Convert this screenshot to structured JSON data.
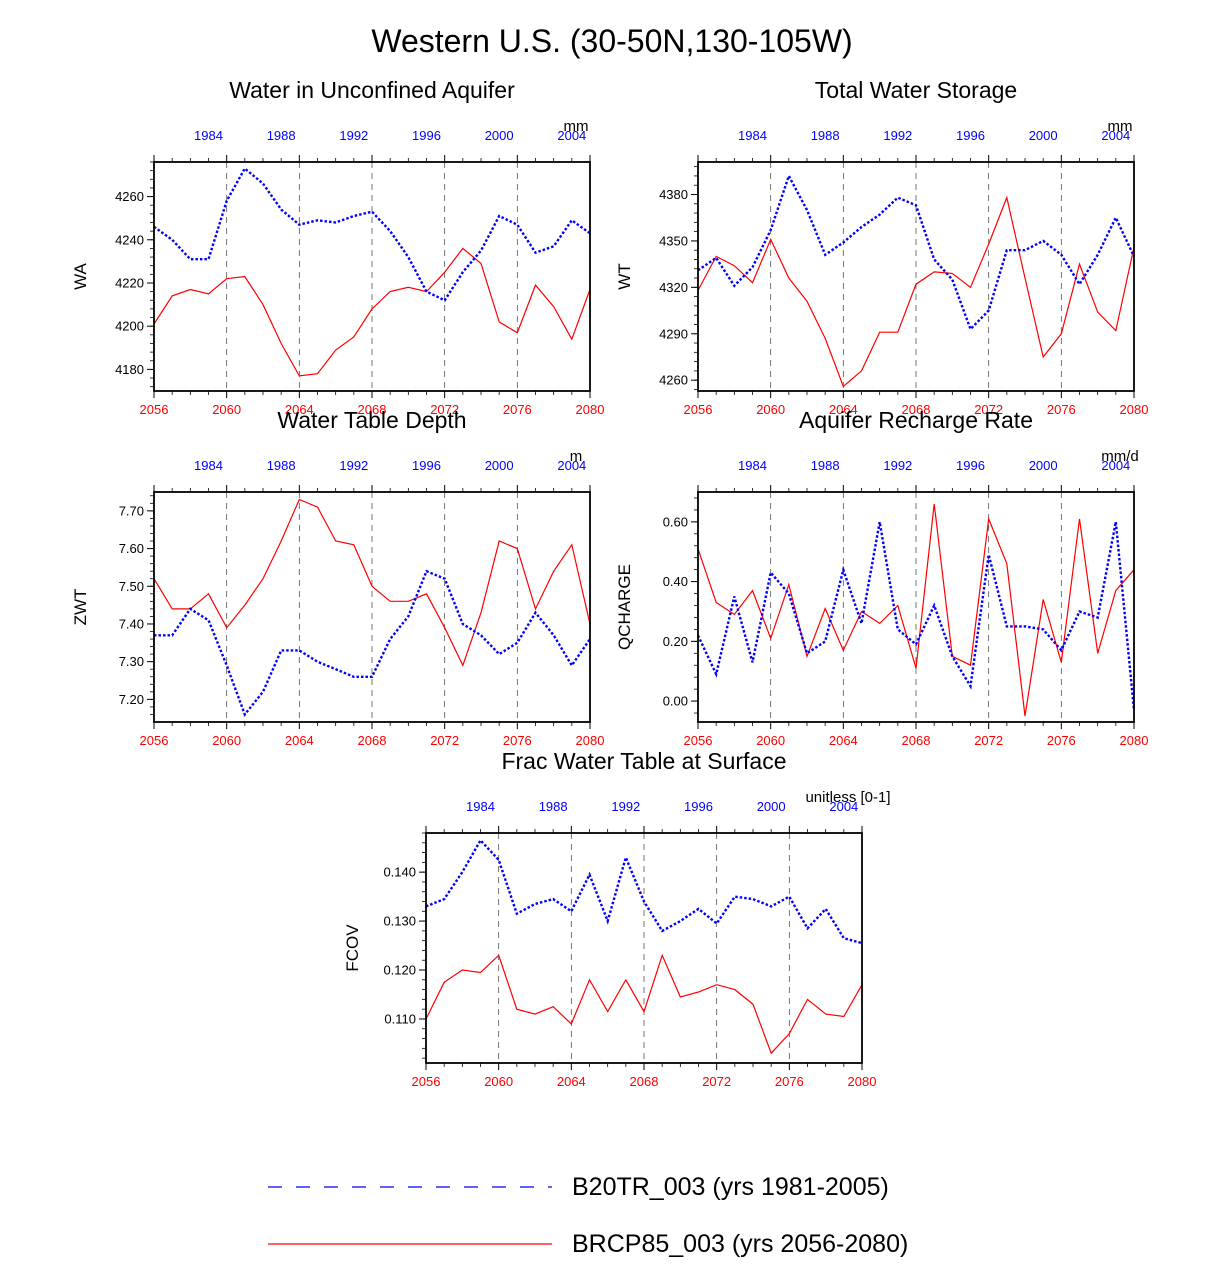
{
  "figure_title": "Western U.S. (30-50N,130-105W)",
  "colors": {
    "historical": "#0000ff",
    "future": "#ff0000",
    "axis": "#000000",
    "grid": "#555555"
  },
  "legend": [
    {
      "label": "B20TR_003 (yrs 1981-2005)",
      "color": "#0000ff",
      "style": "dashed"
    },
    {
      "label": "BRCP85_003 (yrs 2056-2080)",
      "color": "#ff0000",
      "style": "solid"
    }
  ],
  "chart_data": [
    {
      "type": "line",
      "title": "Water in Unconfined Aquifer",
      "ylabel": "WA",
      "units": "mm",
      "ylim": [
        4170,
        4276
      ],
      "yticks": [
        4180,
        4200,
        4220,
        4240,
        4260
      ],
      "ytick_labels": [
        "4180",
        "4200",
        "4220",
        "4240",
        "4260"
      ],
      "bottom_ticks": [
        "2056",
        "2060",
        "2064",
        "2068",
        "2072",
        "2076",
        "2080"
      ],
      "top_ticks": [
        "1984",
        "1988",
        "1992",
        "1996",
        "2000",
        "2004"
      ],
      "series": [
        {
          "name": "B20TR_003 (yrs 1981-2005)",
          "years": "1981-2005",
          "values": [
            4246,
            4240,
            4231,
            4231,
            4258,
            4273,
            4266,
            4254,
            4247,
            4249,
            4248,
            4251,
            4253,
            4244,
            4232,
            4216,
            4212,
            4225,
            4235,
            4251,
            4247,
            4234,
            4237,
            4249,
            4243
          ]
        },
        {
          "name": "BRCP85_003 (yrs 2056-2080)",
          "years": "2056-2080",
          "values": [
            4201,
            4214,
            4217,
            4215,
            4222,
            4223,
            4210,
            4192,
            4177,
            4178,
            4189,
            4195,
            4208,
            4216,
            4218,
            4216,
            4225,
            4236,
            4229,
            4202,
            4197,
            4219,
            4209,
            4194,
            4217
          ]
        }
      ]
    },
    {
      "type": "line",
      "title": "Total Water Storage",
      "ylabel": "WT",
      "units": "mm",
      "ylim": [
        4253,
        4401
      ],
      "yticks": [
        4260,
        4290,
        4320,
        4350,
        4380
      ],
      "ytick_labels": [
        "4260",
        "4290",
        "4320",
        "4350",
        "4380"
      ],
      "bottom_ticks": [
        "2056",
        "2060",
        "2064",
        "2068",
        "2072",
        "2076",
        "2080"
      ],
      "top_ticks": [
        "1984",
        "1988",
        "1992",
        "1996",
        "2000",
        "2004"
      ],
      "series": [
        {
          "name": "B20TR_003 (yrs 1981-2005)",
          "years": "1981-2005",
          "values": [
            4331,
            4339,
            4321,
            4333,
            4357,
            4392,
            4370,
            4341,
            4349,
            4359,
            4367,
            4378,
            4373,
            4338,
            4325,
            4293,
            4305,
            4344,
            4344,
            4350,
            4341,
            4322,
            4341,
            4365,
            4340
          ]
        },
        {
          "name": "BRCP85_003 (yrs 2056-2080)",
          "years": "2056-2080",
          "values": [
            4318,
            4340,
            4334,
            4323,
            4351,
            4326,
            4311,
            4287,
            4256,
            4266,
            4291,
            4291,
            4322,
            4330,
            4329,
            4320,
            4348,
            4378,
            4326,
            4275,
            4290,
            4335,
            4304,
            4292,
            4346
          ]
        }
      ]
    },
    {
      "type": "line",
      "title": "Water Table Depth",
      "ylabel": "ZWT",
      "units": "m",
      "ylim": [
        7.14,
        7.75
      ],
      "yticks": [
        7.2,
        7.3,
        7.4,
        7.5,
        7.6,
        7.7
      ],
      "ytick_labels": [
        "7.20",
        "7.30",
        "7.40",
        "7.50",
        "7.60",
        "7.70"
      ],
      "bottom_ticks": [
        "2056",
        "2060",
        "2064",
        "2068",
        "2072",
        "2076",
        "2080"
      ],
      "top_ticks": [
        "1984",
        "1988",
        "1992",
        "1996",
        "2000",
        "2004"
      ],
      "series": [
        {
          "name": "B20TR_003 (yrs 1981-2005)",
          "years": "1981-2005",
          "values": [
            7.37,
            7.37,
            7.44,
            7.41,
            7.29,
            7.16,
            7.22,
            7.33,
            7.33,
            7.3,
            7.28,
            7.26,
            7.26,
            7.36,
            7.42,
            7.54,
            7.52,
            7.4,
            7.37,
            7.32,
            7.35,
            7.43,
            7.37,
            7.29,
            7.36
          ]
        },
        {
          "name": "BRCP85_003 (yrs 2056-2080)",
          "years": "2056-2080",
          "values": [
            7.52,
            7.44,
            7.44,
            7.48,
            7.39,
            7.45,
            7.52,
            7.62,
            7.73,
            7.71,
            7.62,
            7.61,
            7.5,
            7.46,
            7.46,
            7.48,
            7.39,
            7.29,
            7.43,
            7.62,
            7.6,
            7.44,
            7.54,
            7.61,
            7.4
          ]
        }
      ]
    },
    {
      "type": "line",
      "title": "Aquifer Recharge Rate",
      "ylabel": "QCHARGE",
      "units": "mm/d",
      "ylim": [
        -0.07,
        0.7
      ],
      "yticks": [
        0.0,
        0.2,
        0.4,
        0.6
      ],
      "ytick_labels": [
        "0.00",
        "0.20",
        "0.40",
        "0.60"
      ],
      "bottom_ticks": [
        "2056",
        "2060",
        "2064",
        "2068",
        "2072",
        "2076",
        "2080"
      ],
      "top_ticks": [
        "1984",
        "1988",
        "1992",
        "1996",
        "2000",
        "2004"
      ],
      "series": [
        {
          "name": "B20TR_003 (yrs 1981-2005)",
          "years": "1981-2005",
          "values": [
            0.22,
            0.09,
            0.35,
            0.13,
            0.43,
            0.36,
            0.16,
            0.2,
            0.44,
            0.26,
            0.6,
            0.24,
            0.19,
            0.32,
            0.15,
            0.05,
            0.49,
            0.25,
            0.25,
            0.24,
            0.17,
            0.3,
            0.28,
            0.6,
            -0.03
          ]
        },
        {
          "name": "BRCP85_003 (yrs 2056-2080)",
          "years": "2056-2080",
          "values": [
            0.51,
            0.33,
            0.29,
            0.37,
            0.21,
            0.39,
            0.15,
            0.31,
            0.17,
            0.3,
            0.26,
            0.32,
            0.11,
            0.66,
            0.15,
            0.12,
            0.61,
            0.46,
            -0.05,
            0.34,
            0.13,
            0.61,
            0.16,
            0.37,
            0.44
          ]
        }
      ]
    },
    {
      "type": "line",
      "title": "Frac Water Table at Surface",
      "ylabel": "FCOV",
      "units": "unitless [0-1]",
      "ylim": [
        0.101,
        0.148
      ],
      "yticks": [
        0.11,
        0.12,
        0.13,
        0.14
      ],
      "ytick_labels": [
        "0.110",
        "0.120",
        "0.130",
        "0.140"
      ],
      "bottom_ticks": [
        "2056",
        "2060",
        "2064",
        "2068",
        "2072",
        "2076",
        "2080"
      ],
      "top_ticks": [
        "1984",
        "1988",
        "1992",
        "1996",
        "2000",
        "2004"
      ],
      "series": [
        {
          "name": "B20TR_003 (yrs 1981-2005)",
          "years": "1981-2005",
          "values": [
            0.133,
            0.1345,
            0.14,
            0.1465,
            0.1425,
            0.1315,
            0.1335,
            0.1345,
            0.132,
            0.1395,
            0.13,
            0.143,
            0.134,
            0.128,
            0.13,
            0.1325,
            0.1295,
            0.135,
            0.1345,
            0.133,
            0.135,
            0.1285,
            0.1325,
            0.1265,
            0.1255
          ]
        },
        {
          "name": "BRCP85_003 (yrs 2056-2080)",
          "years": "2056-2080",
          "values": [
            0.11,
            0.1175,
            0.12,
            0.1195,
            0.123,
            0.112,
            0.111,
            0.1125,
            0.109,
            0.118,
            0.1115,
            0.118,
            0.1115,
            0.123,
            0.1145,
            0.1155,
            0.117,
            0.116,
            0.113,
            0.103,
            0.107,
            0.114,
            0.111,
            0.1105,
            0.117
          ]
        }
      ]
    }
  ]
}
